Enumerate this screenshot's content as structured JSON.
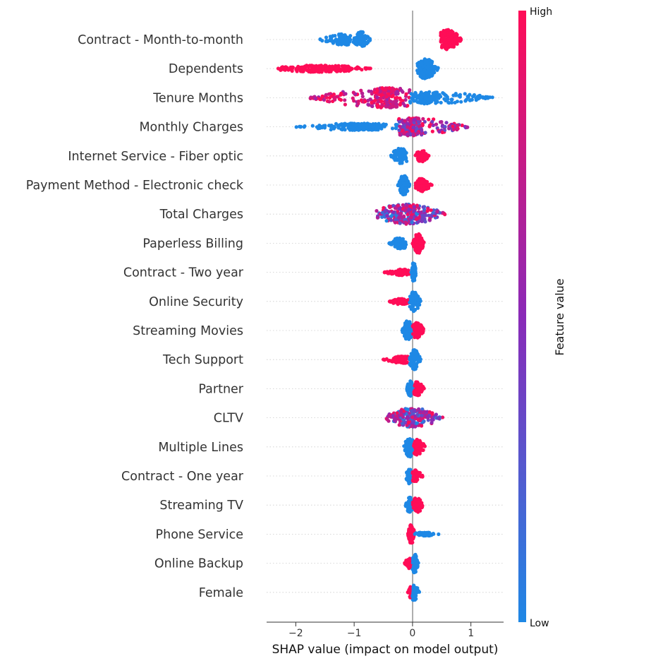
{
  "chart_data": {
    "type": "scatter",
    "subtype": "shap-beeswarm-summary",
    "title": "",
    "xlabel": "SHAP value (impact on model output)",
    "ylabel": "",
    "xlim": [
      -2.5,
      1.56
    ],
    "xticks": [
      -2,
      -1,
      0,
      1
    ],
    "xtick_labels": [
      "−2",
      "−1",
      "0",
      "1"
    ],
    "grid": false,
    "colorbar": {
      "label": "Feature value",
      "high_label": "High",
      "low_label": "Low",
      "low_color": "#1e88e5",
      "high_color": "#ff0d57"
    },
    "features": [
      {
        "name": "Contract - Month-to-month",
        "groups": [
          {
            "range": [
              -1.6,
              -1.0
            ],
            "peak": -1.2,
            "width": 0.55,
            "color": 0.0,
            "n": 90
          },
          {
            "range": [
              -1.0,
              -0.72
            ],
            "peak": -0.88,
            "width": 0.8,
            "color": 0.0,
            "n": 80
          },
          {
            "range": [
              0.48,
              0.84
            ],
            "peak": 0.6,
            "width": 1.0,
            "color": 1.0,
            "n": 170
          }
        ]
      },
      {
        "name": "Dependents",
        "groups": [
          {
            "range": [
              -2.32,
              -0.72
            ],
            "peak": -1.6,
            "width": 0.35,
            "color": 1.0,
            "n": 220
          },
          {
            "range": [
              0.08,
              0.44
            ],
            "peak": 0.22,
            "width": 1.0,
            "color": 0.0,
            "n": 170
          }
        ]
      },
      {
        "name": "Tenure Months",
        "groups": [
          {
            "range": [
              -1.75,
              -0.05
            ],
            "peak": -0.45,
            "width": 1.0,
            "color": 0.9,
            "mix": 0.35,
            "n": 260
          },
          {
            "range": [
              -0.05,
              1.38
            ],
            "peak": 0.25,
            "width": 0.6,
            "color": 0.0,
            "n": 200
          }
        ]
      },
      {
        "name": "Monthly Charges",
        "groups": [
          {
            "range": [
              -2.0,
              -0.25
            ],
            "peak": -0.9,
            "width": 0.35,
            "color": 0.0,
            "n": 180
          },
          {
            "range": [
              -0.25,
              0.95
            ],
            "peak": 0.0,
            "width": 0.9,
            "color": 0.75,
            "mix": 0.5,
            "n": 230
          }
        ]
      },
      {
        "name": "Internet Service - Fiber optic",
        "groups": [
          {
            "range": [
              -0.38,
              -0.1
            ],
            "peak": -0.2,
            "width": 0.8,
            "color": 0.0,
            "n": 90
          },
          {
            "range": [
              0.05,
              0.28
            ],
            "peak": 0.15,
            "width": 0.6,
            "color": 1.0,
            "n": 70
          }
        ]
      },
      {
        "name": "Payment Method - Electronic check",
        "groups": [
          {
            "range": [
              -0.25,
              -0.05
            ],
            "peak": -0.15,
            "width": 1.0,
            "color": 0.0,
            "n": 110
          },
          {
            "range": [
              0.05,
              0.33
            ],
            "peak": 0.15,
            "width": 0.65,
            "color": 1.0,
            "n": 90
          }
        ]
      },
      {
        "name": "Total Charges",
        "groups": [
          {
            "range": [
              -0.62,
              0.58
            ],
            "peak": -0.1,
            "width": 1.0,
            "color": 0.5,
            "mix": 0.55,
            "n": 260
          }
        ]
      },
      {
        "name": "Paperless Billing",
        "groups": [
          {
            "range": [
              -0.4,
              -0.08
            ],
            "peak": -0.2,
            "width": 0.55,
            "color": 0.0,
            "n": 100
          },
          {
            "range": [
              0.0,
              0.2
            ],
            "peak": 0.1,
            "width": 1.0,
            "color": 1.0,
            "n": 90
          }
        ]
      },
      {
        "name": "Contract - Two year",
        "groups": [
          {
            "range": [
              -0.48,
              -0.05
            ],
            "peak": -0.2,
            "width": 0.3,
            "color": 1.0,
            "n": 110
          },
          {
            "range": [
              -0.02,
              0.06
            ],
            "peak": 0.02,
            "width": 1.0,
            "color": 0.0,
            "n": 80
          }
        ]
      },
      {
        "name": "Online Security",
        "groups": [
          {
            "range": [
              -0.4,
              -0.05
            ],
            "peak": -0.2,
            "width": 0.3,
            "color": 1.0,
            "n": 90
          },
          {
            "range": [
              -0.05,
              0.14
            ],
            "peak": 0.03,
            "width": 1.0,
            "color": 0.0,
            "n": 90
          }
        ]
      },
      {
        "name": "Streaming Movies",
        "groups": [
          {
            "range": [
              -0.18,
              0.0
            ],
            "peak": -0.08,
            "width": 1.0,
            "color": 0.0,
            "n": 90
          },
          {
            "range": [
              0.0,
              0.2
            ],
            "peak": 0.08,
            "width": 0.8,
            "color": 1.0,
            "n": 90
          }
        ]
      },
      {
        "name": "Tech Support",
        "groups": [
          {
            "range": [
              -0.5,
              -0.05
            ],
            "peak": -0.15,
            "width": 0.35,
            "color": 1.0,
            "n": 100
          },
          {
            "range": [
              -0.05,
              0.14
            ],
            "peak": 0.03,
            "width": 1.0,
            "color": 0.0,
            "n": 80
          }
        ]
      },
      {
        "name": "Partner",
        "groups": [
          {
            "range": [
              -0.1,
              0.02
            ],
            "peak": -0.04,
            "width": 0.8,
            "color": 0.0,
            "n": 70
          },
          {
            "range": [
              0.02,
              0.2
            ],
            "peak": 0.08,
            "width": 0.7,
            "color": 1.0,
            "n": 70
          }
        ]
      },
      {
        "name": "CLTV",
        "groups": [
          {
            "range": [
              -0.45,
              0.52
            ],
            "peak": 0.0,
            "width": 1.0,
            "color": 0.5,
            "mix": 0.55,
            "n": 220
          }
        ]
      },
      {
        "name": "Multiple Lines",
        "groups": [
          {
            "range": [
              -0.15,
              0.02
            ],
            "peak": -0.05,
            "width": 1.0,
            "color": 0.0,
            "n": 80
          },
          {
            "range": [
              0.02,
              0.22
            ],
            "peak": 0.08,
            "width": 0.8,
            "color": 1.0,
            "n": 80
          }
        ]
      },
      {
        "name": "Contract - One year",
        "groups": [
          {
            "range": [
              -0.12,
              0.0
            ],
            "peak": -0.05,
            "width": 0.8,
            "color": 0.0,
            "n": 60
          },
          {
            "range": [
              0.0,
              0.18
            ],
            "peak": 0.05,
            "width": 0.6,
            "color": 1.0,
            "n": 60
          }
        ]
      },
      {
        "name": "Streaming TV",
        "groups": [
          {
            "range": [
              -0.12,
              0.0
            ],
            "peak": -0.05,
            "width": 0.8,
            "color": 0.0,
            "n": 60
          },
          {
            "range": [
              0.0,
              0.18
            ],
            "peak": 0.08,
            "width": 0.8,
            "color": 1.0,
            "n": 70
          }
        ]
      },
      {
        "name": "Phone Service",
        "groups": [
          {
            "range": [
              -0.08,
              0.03
            ],
            "peak": -0.02,
            "width": 1.0,
            "color": 1.0,
            "n": 90
          },
          {
            "range": [
              0.03,
              0.45
            ],
            "peak": 0.2,
            "width": 0.18,
            "color": 0.0,
            "n": 50
          }
        ]
      },
      {
        "name": "Online Backup",
        "groups": [
          {
            "range": [
              -0.14,
              0.0
            ],
            "peak": -0.05,
            "width": 0.55,
            "color": 1.0,
            "n": 60
          },
          {
            "range": [
              0.0,
              0.1
            ],
            "peak": 0.03,
            "width": 1.0,
            "color": 0.0,
            "n": 70
          }
        ]
      },
      {
        "name": "Female",
        "groups": [
          {
            "range": [
              -0.08,
              0.01
            ],
            "peak": -0.02,
            "width": 0.6,
            "color": 1.0,
            "n": 50
          },
          {
            "range": [
              0.0,
              0.12
            ],
            "peak": 0.02,
            "width": 0.8,
            "color": 0.0,
            "n": 50
          }
        ]
      }
    ]
  }
}
